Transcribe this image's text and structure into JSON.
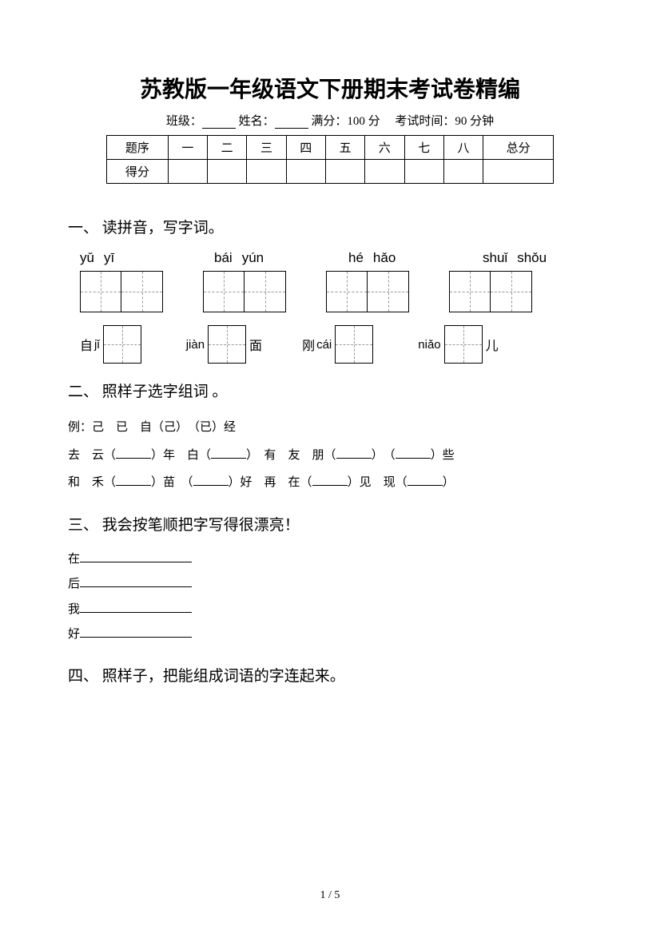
{
  "title": "苏教版一年级语文下册期末考试卷精编",
  "meta": {
    "class_label": "班级：",
    "name_label": "姓名：",
    "full_score_label": "满分：100 分",
    "time_label": "考试时间：90 分钟"
  },
  "score_table": {
    "row1_label": "题序",
    "row2_label": "得分",
    "cols": [
      "一",
      "二",
      "三",
      "四",
      "五",
      "六",
      "七",
      "八"
    ],
    "total_label": "总分"
  },
  "section1": {
    "heading": "一、 读拼音，写字词。",
    "pinyin_row1": [
      [
        "yǔ",
        "yī"
      ],
      [
        "bái",
        "yún"
      ],
      [
        "hé",
        "hǎo"
      ],
      [
        "shuǐ",
        "shǒu"
      ]
    ],
    "pinyin_row2": [
      {
        "pre": "自",
        "py": "jǐ",
        "post": ""
      },
      {
        "pre": "",
        "py": "jiàn",
        "post": "面"
      },
      {
        "pre": "刚",
        "py": "cái",
        "post": ""
      },
      {
        "pre": "",
        "py": "niǎo",
        "post": "儿"
      }
    ]
  },
  "section2": {
    "heading": "二、 照样子选字组词 。",
    "example": "例：己　已　自（己）　（已）经",
    "line1": {
      "g1a": "去　云（",
      "g1b": "）年　白（",
      "g1c": "）",
      "g2a": "　有　友　朋（",
      "g2b": "）　（",
      "g2c": "）些"
    },
    "line2": {
      "g1a": "和　禾（",
      "g1b": "）苗　（",
      "g1c": "）好",
      "g2a": "　再　在（",
      "g2b": "）见　现（",
      "g2c": "）"
    }
  },
  "section3": {
    "heading": "三、 我会按笔顺把字写得很漂亮！",
    "items": [
      "在",
      "后",
      "我",
      "好"
    ]
  },
  "section4": {
    "heading": "四、 照样子，把能组成词语的字连起来。"
  },
  "page_num": "1 / 5"
}
